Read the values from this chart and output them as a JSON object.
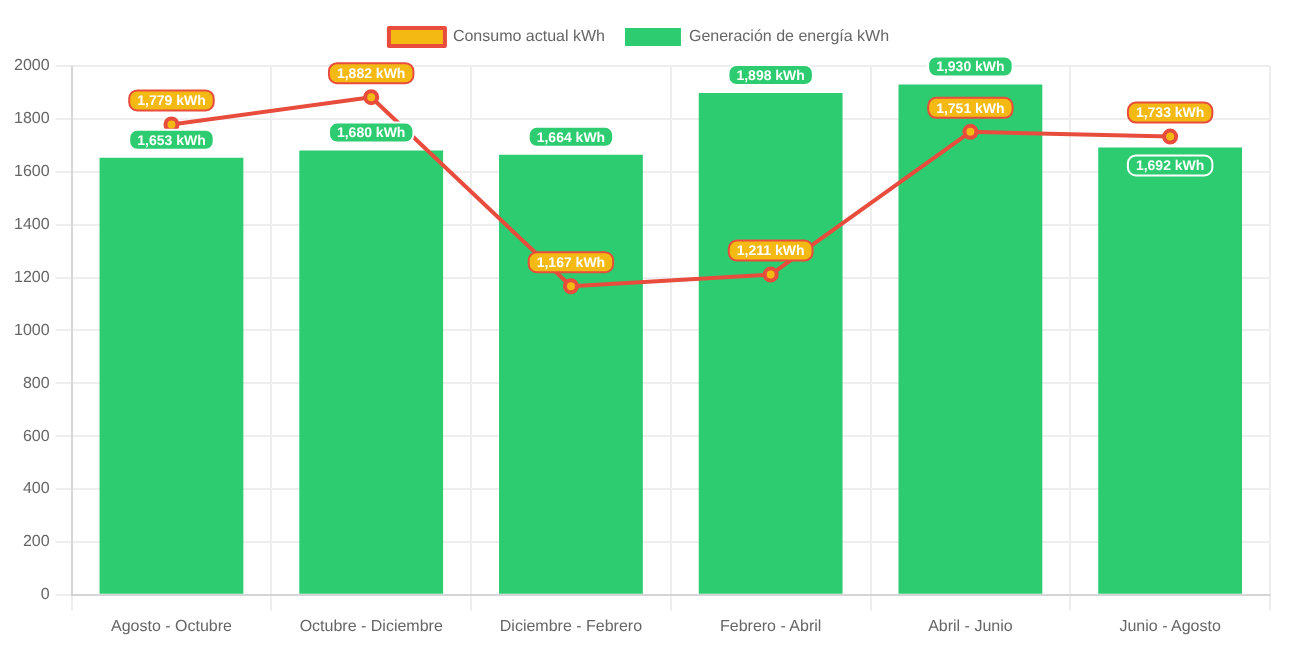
{
  "chart_data": {
    "type": "bar",
    "categories": [
      "Agosto - Octubre",
      "Octubre - Diciembre",
      "Diciembre - Febrero",
      "Febrero - Abril",
      "Abril - Junio",
      "Junio - Agosto"
    ],
    "series": [
      {
        "name": "Consumo actual kWh",
        "type": "line",
        "color": "#e74c3c",
        "values": [
          1779,
          1882,
          1167,
          1211,
          1751,
          1733
        ],
        "value_labels": [
          "1,779 kWh",
          "1,882 kWh",
          "1,167 kWh",
          "1,211 kWh",
          "1,751 kWh",
          "1,733 kWh"
        ]
      },
      {
        "name": "Generación de energía kWh",
        "color": "#2ecc71",
        "values": [
          1653,
          1680,
          1664,
          1898,
          1930,
          1692
        ],
        "value_labels": [
          "1,653 kWh",
          "1,680 kWh",
          "1,664 kWh",
          "1,898 kWh",
          "1,930 kWh",
          "1,692 kWh"
        ]
      }
    ],
    "ylim": [
      0,
      2000
    ],
    "yticks": [
      0,
      200,
      400,
      600,
      800,
      1000,
      1200,
      1400,
      1600,
      1800,
      2000
    ],
    "grid": true,
    "legend": "top",
    "marker": "circle"
  }
}
